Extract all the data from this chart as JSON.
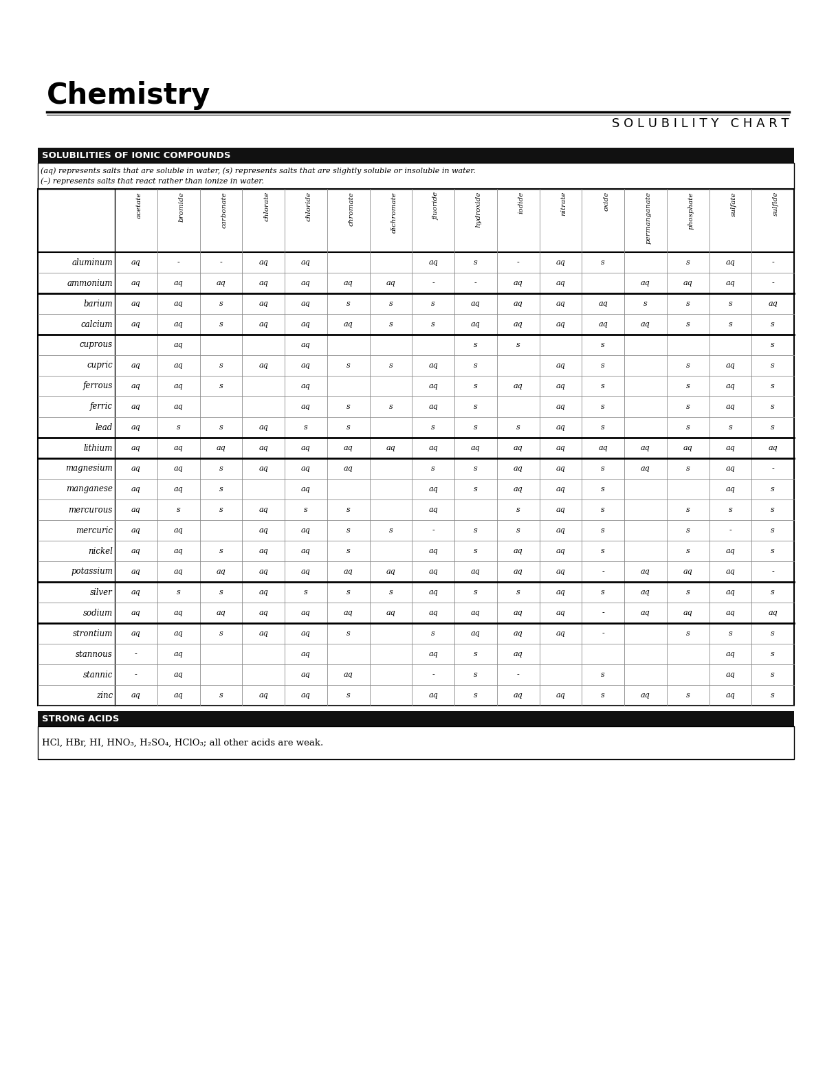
{
  "title": "Chemistry",
  "subtitle": "S O L U B I L I T Y   C H A R T",
  "section_header": "SOLUBILITIES OF IONIC COMPOUNDS",
  "description_line1": "(aq) represents salts that are soluble in water, (s) represents salts that are slightly soluble or insoluble in water.",
  "description_line2": "(–) represents salts that react rather than ionize in water.",
  "strong_acids_header": "STRONG ACIDS",
  "strong_acids_text": "HCl, HBr, HI, HNO₃, H₂SO₄, HClO₃; all other acids are weak.",
  "columns": [
    "acetate",
    "bromide",
    "carbonate",
    "chlorate",
    "chloride",
    "chromate",
    "dichromate",
    "fluoride",
    "hydroxide",
    "iodide",
    "nitrate",
    "oxide",
    "permanganate",
    "phosphate",
    "sulfate",
    "sulfide"
  ],
  "rows": [
    {
      "ion": "aluminum",
      "data": [
        "aq",
        "-",
        "-",
        "aq",
        "aq",
        "",
        "",
        "aq",
        "s",
        "-",
        "aq",
        "s",
        "",
        "s",
        "aq",
        "-"
      ]
    },
    {
      "ion": "ammonium",
      "data": [
        "aq",
        "aq",
        "aq",
        "aq",
        "aq",
        "aq",
        "aq",
        "-",
        "-",
        "aq",
        "aq",
        "",
        "aq",
        "aq",
        "aq",
        "-"
      ]
    },
    {
      "ion": "barium",
      "data": [
        "aq",
        "aq",
        "s",
        "aq",
        "aq",
        "s",
        "s",
        "s",
        "aq",
        "aq",
        "aq",
        "aq",
        "s",
        "s",
        "s",
        "aq"
      ]
    },
    {
      "ion": "calcium",
      "data": [
        "aq",
        "aq",
        "s",
        "aq",
        "aq",
        "aq",
        "s",
        "s",
        "aq",
        "aq",
        "aq",
        "aq",
        "aq",
        "s",
        "s",
        "s"
      ]
    },
    {
      "ion": "cuprous",
      "data": [
        "",
        "aq",
        "",
        "",
        "aq",
        "",
        "",
        "",
        "s",
        "s",
        "",
        "s",
        "",
        "",
        "",
        "s"
      ]
    },
    {
      "ion": "cupric",
      "data": [
        "aq",
        "aq",
        "s",
        "aq",
        "aq",
        "s",
        "s",
        "aq",
        "s",
        "",
        "aq",
        "s",
        "",
        "s",
        "aq",
        "s"
      ]
    },
    {
      "ion": "ferrous",
      "data": [
        "aq",
        "aq",
        "s",
        "",
        "aq",
        "",
        "",
        "aq",
        "s",
        "aq",
        "aq",
        "s",
        "",
        "s",
        "aq",
        "s"
      ]
    },
    {
      "ion": "ferric",
      "data": [
        "aq",
        "aq",
        "",
        "",
        "aq",
        "s",
        "s",
        "aq",
        "s",
        "",
        "aq",
        "s",
        "",
        "s",
        "aq",
        "s"
      ]
    },
    {
      "ion": "lead",
      "data": [
        "aq",
        "s",
        "s",
        "aq",
        "s",
        "s",
        "",
        "s",
        "s",
        "s",
        "aq",
        "s",
        "",
        "s",
        "s",
        "s"
      ]
    },
    {
      "ion": "lithium",
      "data": [
        "aq",
        "aq",
        "aq",
        "aq",
        "aq",
        "aq",
        "aq",
        "aq",
        "aq",
        "aq",
        "aq",
        "aq",
        "aq",
        "aq",
        "aq",
        "aq"
      ]
    },
    {
      "ion": "magnesium",
      "data": [
        "aq",
        "aq",
        "s",
        "aq",
        "aq",
        "aq",
        "",
        "s",
        "s",
        "aq",
        "aq",
        "s",
        "aq",
        "s",
        "aq",
        "-"
      ]
    },
    {
      "ion": "manganese",
      "data": [
        "aq",
        "aq",
        "s",
        "",
        "aq",
        "",
        "",
        "aq",
        "s",
        "aq",
        "aq",
        "s",
        "",
        "",
        "aq",
        "s"
      ]
    },
    {
      "ion": "mercurous",
      "data": [
        "aq",
        "s",
        "s",
        "aq",
        "s",
        "s",
        "",
        "aq",
        "",
        "s",
        "aq",
        "s",
        "",
        "s",
        "s",
        "s"
      ]
    },
    {
      "ion": "mercuric",
      "data": [
        "aq",
        "aq",
        "",
        "aq",
        "aq",
        "s",
        "s",
        "-",
        "s",
        "s",
        "aq",
        "s",
        "",
        "s",
        "-",
        "s"
      ]
    },
    {
      "ion": "nickel",
      "data": [
        "aq",
        "aq",
        "s",
        "aq",
        "aq",
        "s",
        "",
        "aq",
        "s",
        "aq",
        "aq",
        "s",
        "",
        "s",
        "aq",
        "s"
      ]
    },
    {
      "ion": "potassium",
      "data": [
        "aq",
        "aq",
        "aq",
        "aq",
        "aq",
        "aq",
        "aq",
        "aq",
        "aq",
        "aq",
        "aq",
        "-",
        "aq",
        "aq",
        "aq",
        "-"
      ]
    },
    {
      "ion": "silver",
      "data": [
        "aq",
        "s",
        "s",
        "aq",
        "s",
        "s",
        "s",
        "aq",
        "s",
        "s",
        "aq",
        "s",
        "aq",
        "s",
        "aq",
        "s"
      ]
    },
    {
      "ion": "sodium",
      "data": [
        "aq",
        "aq",
        "aq",
        "aq",
        "aq",
        "aq",
        "aq",
        "aq",
        "aq",
        "aq",
        "aq",
        "-",
        "aq",
        "aq",
        "aq",
        "aq"
      ]
    },
    {
      "ion": "strontium",
      "data": [
        "aq",
        "aq",
        "s",
        "aq",
        "aq",
        "s",
        "",
        "s",
        "aq",
        "aq",
        "aq",
        "-",
        "",
        "s",
        "s",
        "s"
      ]
    },
    {
      "ion": "stannous",
      "data": [
        "-",
        "aq",
        "",
        "",
        "aq",
        "",
        "",
        "aq",
        "s",
        "aq",
        "",
        "",
        "",
        "",
        "aq",
        "s"
      ]
    },
    {
      "ion": "stannic",
      "data": [
        "-",
        "aq",
        "",
        "",
        "aq",
        "aq",
        "",
        "-",
        "s",
        "-",
        "",
        "s",
        "",
        "",
        "aq",
        "s"
      ]
    },
    {
      "ion": "zinc",
      "data": [
        "aq",
        "aq",
        "s",
        "aq",
        "aq",
        "s",
        "",
        "aq",
        "s",
        "aq",
        "aq",
        "s",
        "aq",
        "s",
        "aq",
        "s"
      ]
    }
  ],
  "thick_borders_after_rows": [
    1,
    3,
    8,
    9,
    15,
    17
  ],
  "bg_color": "#ffffff",
  "header_bg": "#111111",
  "border_color": "#000000",
  "cell_border_color": "#888888"
}
